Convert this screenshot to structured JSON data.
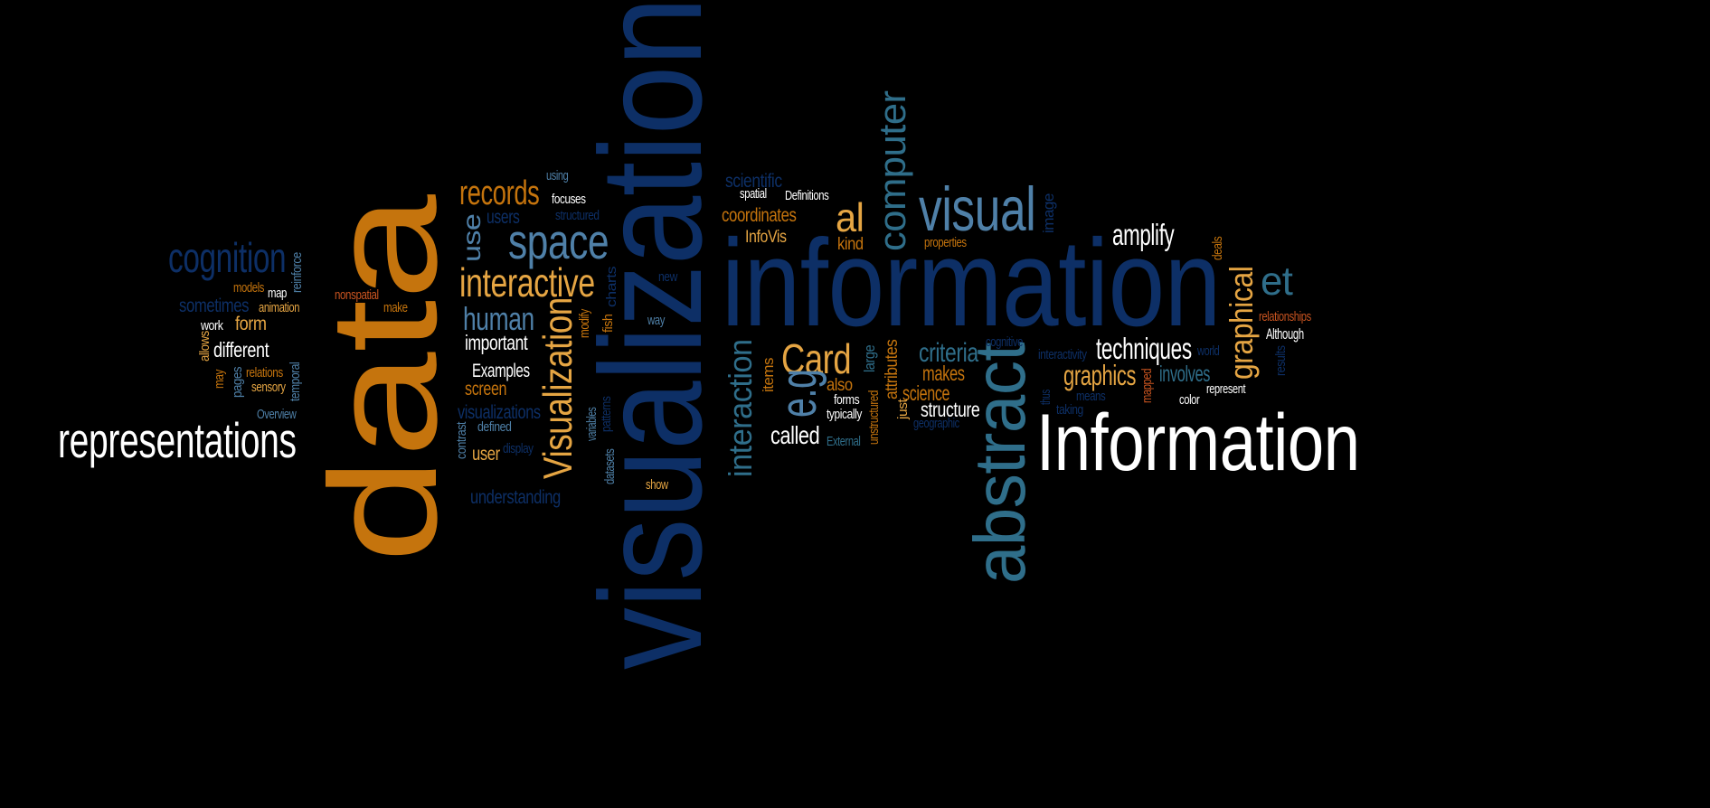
{
  "palette": {
    "orange": "#c5740d",
    "gold": "#e5a543",
    "navy": "#0d2f66",
    "teal": "#2f6e8a",
    "steel": "#4f80a8",
    "white": "#ffffff",
    "red": "#c95420"
  },
  "words": [
    {
      "t": "data",
      "c": "orange"
    },
    {
      "t": "visualization",
      "c": "navy"
    },
    {
      "t": "information",
      "c": "navy"
    },
    {
      "t": "Information",
      "c": "white"
    },
    {
      "t": "abstract",
      "c": "teal"
    },
    {
      "t": "representations",
      "c": "white"
    },
    {
      "t": "visual",
      "c": "steel"
    },
    {
      "t": "cognition",
      "c": "navy"
    },
    {
      "t": "space",
      "c": "steel"
    },
    {
      "t": "interactive",
      "c": "gold"
    },
    {
      "t": "records",
      "c": "orange"
    },
    {
      "t": "human",
      "c": "steel"
    },
    {
      "t": "Visualization",
      "c": "gold"
    },
    {
      "t": "computer",
      "c": "teal"
    },
    {
      "t": "Card",
      "c": "gold"
    },
    {
      "t": "interaction",
      "c": "teal"
    },
    {
      "t": "e.g",
      "c": "steel"
    },
    {
      "t": "al",
      "c": "gold"
    },
    {
      "t": "et",
      "c": "teal"
    },
    {
      "t": "graphical",
      "c": "gold"
    },
    {
      "t": "amplify",
      "c": "white"
    },
    {
      "t": "techniques",
      "c": "white"
    },
    {
      "t": "graphics",
      "c": "gold"
    },
    {
      "t": "involves",
      "c": "teal"
    },
    {
      "t": "criteria",
      "c": "teal"
    },
    {
      "t": "makes",
      "c": "orange"
    },
    {
      "t": "science",
      "c": "orange"
    },
    {
      "t": "structure",
      "c": "white"
    },
    {
      "t": "called",
      "c": "white"
    },
    {
      "t": "use",
      "c": "steel"
    },
    {
      "t": "users",
      "c": "navy"
    },
    {
      "t": "important",
      "c": "white"
    },
    {
      "t": "Examples",
      "c": "white"
    },
    {
      "t": "screen",
      "c": "orange"
    },
    {
      "t": "visualizations",
      "c": "navy"
    },
    {
      "t": "user",
      "c": "gold"
    },
    {
      "t": "understanding",
      "c": "navy"
    },
    {
      "t": "different",
      "c": "white"
    },
    {
      "t": "sometimes",
      "c": "navy"
    },
    {
      "t": "form",
      "c": "gold"
    },
    {
      "t": "coordinates",
      "c": "orange"
    },
    {
      "t": "InfoVis",
      "c": "gold"
    },
    {
      "t": "kind",
      "c": "orange"
    },
    {
      "t": "scientific",
      "c": "navy"
    },
    {
      "t": "attributes",
      "c": "orange"
    },
    {
      "t": "large",
      "c": "teal"
    },
    {
      "t": "items",
      "c": "orange"
    },
    {
      "t": "also",
      "c": "orange"
    },
    {
      "t": "image",
      "c": "navy"
    },
    {
      "t": "properties",
      "c": "orange"
    },
    {
      "t": "deals",
      "c": "orange"
    },
    {
      "t": "relationships",
      "c": "red"
    },
    {
      "t": "Although",
      "c": "white"
    },
    {
      "t": "represent",
      "c": "white"
    },
    {
      "t": "color",
      "c": "white"
    },
    {
      "t": "mapped",
      "c": "red"
    },
    {
      "t": "world",
      "c": "navy"
    },
    {
      "t": "results",
      "c": "navy"
    },
    {
      "t": "cognitive",
      "c": "navy"
    },
    {
      "t": "interactivity",
      "c": "navy"
    },
    {
      "t": "thus",
      "c": "navy"
    },
    {
      "t": "means",
      "c": "navy"
    },
    {
      "t": "taking",
      "c": "navy"
    },
    {
      "t": "geographic",
      "c": "navy"
    },
    {
      "t": "just",
      "c": "gold"
    },
    {
      "t": "unstructured",
      "c": "orange"
    },
    {
      "t": "forms",
      "c": "white"
    },
    {
      "t": "typically",
      "c": "white"
    },
    {
      "t": "External",
      "c": "teal"
    },
    {
      "t": "spatial",
      "c": "white"
    },
    {
      "t": "Definitions",
      "c": "white"
    },
    {
      "t": "using",
      "c": "steel"
    },
    {
      "t": "focuses",
      "c": "white"
    },
    {
      "t": "structured",
      "c": "navy"
    },
    {
      "t": "new",
      "c": "navy"
    },
    {
      "t": "charts",
      "c": "navy"
    },
    {
      "t": "modify",
      "c": "orange"
    },
    {
      "t": "fish",
      "c": "orange"
    },
    {
      "t": "way",
      "c": "steel"
    },
    {
      "t": "variables",
      "c": "steel"
    },
    {
      "t": "patterns",
      "c": "navy"
    },
    {
      "t": "datasets",
      "c": "steel"
    },
    {
      "t": "show",
      "c": "gold"
    },
    {
      "t": "contrast",
      "c": "steel"
    },
    {
      "t": "defined",
      "c": "steel"
    },
    {
      "t": "display",
      "c": "navy"
    },
    {
      "t": "reinforce",
      "c": "steel"
    },
    {
      "t": "models",
      "c": "orange"
    },
    {
      "t": "map",
      "c": "white"
    },
    {
      "t": "animation",
      "c": "gold"
    },
    {
      "t": "nonspatial",
      "c": "red"
    },
    {
      "t": "make",
      "c": "orange"
    },
    {
      "t": "work",
      "c": "white"
    },
    {
      "t": "allows",
      "c": "gold"
    },
    {
      "t": "may",
      "c": "orange"
    },
    {
      "t": "pages",
      "c": "steel"
    },
    {
      "t": "relations",
      "c": "orange"
    },
    {
      "t": "sensory",
      "c": "gold"
    },
    {
      "t": "temporal",
      "c": "steel"
    },
    {
      "t": "Overview",
      "c": "steel"
    }
  ]
}
